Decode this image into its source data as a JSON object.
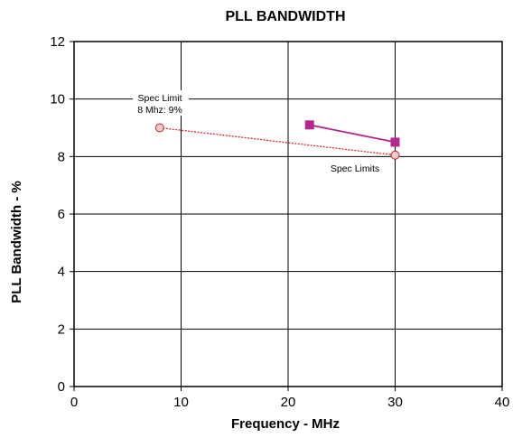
{
  "chart_data": {
    "type": "scatter",
    "title": "PLL BANDWIDTH",
    "xlabel": "Frequency - MHz",
    "ylabel": "PLL Bandwidth - %",
    "xlim": [
      0,
      40
    ],
    "ylim": [
      0,
      12
    ],
    "x_ticks": [
      0,
      10,
      20,
      30,
      40
    ],
    "y_ticks": [
      0,
      2,
      4,
      6,
      8,
      10,
      12
    ],
    "grid": true,
    "series": [
      {
        "marker": "square",
        "line": "solid",
        "color": "#b3278f",
        "points": [
          {
            "x": 22,
            "y": 9.1
          },
          {
            "x": 30,
            "y": 8.5
          }
        ]
      },
      {
        "marker": "circle",
        "line": "dotted",
        "color": "#d9252a",
        "points": [
          {
            "x": 8,
            "y": 9.0
          },
          {
            "x": 30,
            "y": 8.05
          }
        ]
      }
    ],
    "annotations": [
      {
        "lines": [
          "Spec Limit",
          "8 Mhz: 9%"
        ]
      },
      {
        "lines": [
          "Spec Limits"
        ]
      }
    ]
  }
}
